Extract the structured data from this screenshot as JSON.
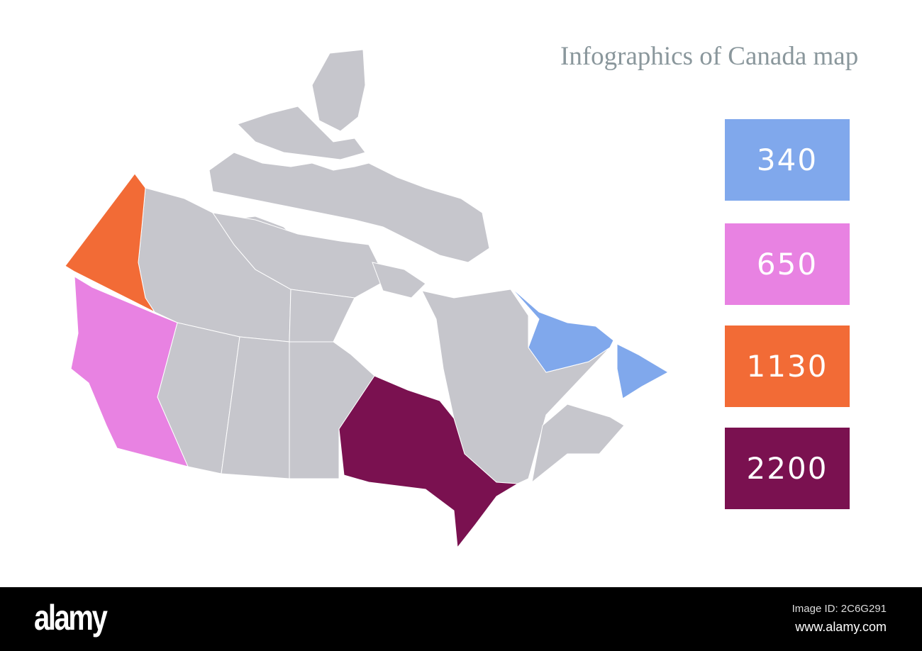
{
  "title": "Infographics of Canada map",
  "map": {
    "base_color": "#c6c6cc",
    "border_color": "#ffffff",
    "highlighted_regions": [
      {
        "region": "Yukon",
        "color": "#f26b36"
      },
      {
        "region": "British Columbia",
        "color": "#e882e2"
      },
      {
        "region": "Ontario",
        "color": "#7a1150"
      },
      {
        "region": "Newfoundland and Labrador",
        "color": "#80a8ec"
      }
    ]
  },
  "legend": [
    {
      "value": "340",
      "color": "#80a8ec"
    },
    {
      "value": "650",
      "color": "#e882e2"
    },
    {
      "value": "1130",
      "color": "#f26b36"
    },
    {
      "value": "2200",
      "color": "#7a1150"
    }
  ],
  "watermark": {
    "logo": "alamy",
    "image_id": "Image ID: 2C6G291",
    "url": "www.alamy.com"
  }
}
